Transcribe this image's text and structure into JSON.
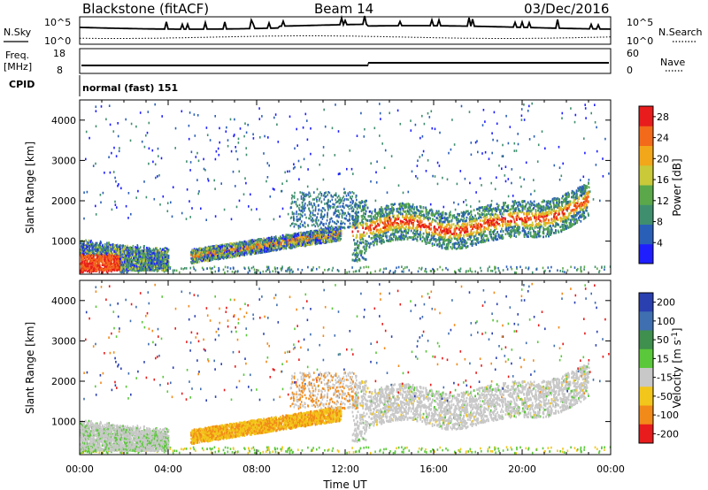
{
  "header": {
    "station": "Blackstone (fitACF)",
    "beam": "Beam 14",
    "date": "03/Dec/2016"
  },
  "summary_panels": {
    "nsky_label": "N.Sky",
    "nsearch_label": "N.Search",
    "noise_ticks_left": [
      "10^5",
      "10^0"
    ],
    "noise_ticks_right": [
      "10^5",
      "10^0"
    ],
    "freq_label_1": "Freq.",
    "freq_label_2": "[MHz]",
    "freq_ticks": [
      "18",
      "8"
    ],
    "nave_label": "Nave",
    "nave_ticks": [
      "60",
      "0"
    ],
    "cpid_label": "CPID",
    "cpid_value": "normal (fast) 151"
  },
  "chart_data": [
    {
      "type": "heatmap",
      "panel": "power",
      "ylabel": "Slant Range [km]",
      "xlabel": "Time UT",
      "x_ticks": [
        "00:00",
        "04:00",
        "08:00",
        "12:00",
        "16:00",
        "20:00",
        "00:00"
      ],
      "xlim_hours": [
        0,
        24
      ],
      "ylim_km": [
        180,
        4500
      ],
      "y_ticks": [
        1000,
        2000,
        3000,
        4000
      ],
      "colorbar": {
        "label": "Power [dB]",
        "ticks": [
          4,
          8,
          12,
          16,
          20,
          24,
          28
        ],
        "range": [
          0,
          30
        ],
        "colors": [
          "#1e1eff",
          "#2a5fb7",
          "#3f8f6e",
          "#5aa84a",
          "#c9c93a",
          "#f2a61a",
          "#f26a1a",
          "#e81c1c"
        ]
      },
      "regions": [
        {
          "x": [
            0.0,
            1.8
          ],
          "y": [
            200,
            700
          ],
          "value": "high"
        },
        {
          "x": [
            1.8,
            4.0
          ],
          "y": [
            400,
            900
          ],
          "value": "medium"
        },
        {
          "x": [
            5.0,
            11.5
          ],
          "y": [
            600,
            1300
          ],
          "value": "medium"
        },
        {
          "x": [
            12.3,
            23.0
          ],
          "y": [
            900,
            2200
          ],
          "value": "high"
        },
        {
          "x": [
            0.0,
            24.0
          ],
          "y": [
            200,
            350
          ],
          "value": "low"
        }
      ]
    },
    {
      "type": "heatmap",
      "panel": "velocity",
      "ylabel": "Slant Range [km]",
      "xlabel": "Time UT",
      "x_ticks": [
        "00:00",
        "04:00",
        "08:00",
        "12:00",
        "16:00",
        "20:00",
        "00:00"
      ],
      "xlim_hours": [
        0,
        24
      ],
      "ylim_km": [
        180,
        4500
      ],
      "y_ticks": [
        1000,
        2000,
        3000,
        4000
      ],
      "colorbar": {
        "label": "Velocity [m s^-1]",
        "ticks": [
          "200",
          "100",
          "50",
          "15",
          "-15",
          "-50",
          "-100",
          "-200"
        ],
        "colors": [
          "#2a3fb0",
          "#3f6fb0",
          "#3f8f4e",
          "#5ac83a",
          "#c8c8c8",
          "#f2c61a",
          "#f28a1a",
          "#e81c1c"
        ]
      },
      "regions": [
        {
          "x": [
            0.0,
            4.0
          ],
          "y": [
            300,
            1000
          ],
          "value": "-15..15"
        },
        {
          "x": [
            5.0,
            11.8
          ],
          "y": [
            600,
            1300
          ],
          "value": "-50..-100"
        },
        {
          "x": [
            12.3,
            23.0
          ],
          "y": [
            900,
            2200
          ],
          "value": "-15..15"
        },
        {
          "x": [
            0.0,
            24.0
          ],
          "y": [
            200,
            400
          ],
          "value": "15..50"
        }
      ]
    }
  ]
}
